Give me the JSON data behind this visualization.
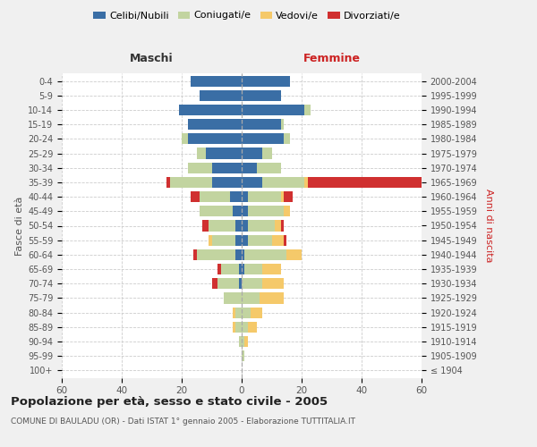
{
  "age_groups": [
    "100+",
    "95-99",
    "90-94",
    "85-89",
    "80-84",
    "75-79",
    "70-74",
    "65-69",
    "60-64",
    "55-59",
    "50-54",
    "45-49",
    "40-44",
    "35-39",
    "30-34",
    "25-29",
    "20-24",
    "15-19",
    "10-14",
    "5-9",
    "0-4"
  ],
  "birth_years": [
    "≤ 1904",
    "1905-1909",
    "1910-1914",
    "1915-1919",
    "1920-1924",
    "1925-1929",
    "1930-1934",
    "1935-1939",
    "1940-1944",
    "1945-1949",
    "1950-1954",
    "1955-1959",
    "1960-1964",
    "1965-1969",
    "1970-1974",
    "1975-1979",
    "1980-1984",
    "1985-1989",
    "1990-1994",
    "1995-1999",
    "2000-2004"
  ],
  "maschi": {
    "celibi": [
      0,
      0,
      0,
      0,
      0,
      0,
      1,
      1,
      2,
      2,
      2,
      3,
      4,
      10,
      10,
      12,
      18,
      18,
      21,
      14,
      17
    ],
    "coniugati": [
      0,
      0,
      1,
      2,
      2,
      6,
      7,
      6,
      13,
      8,
      9,
      11,
      10,
      14,
      8,
      3,
      2,
      0,
      0,
      0,
      0
    ],
    "vedovi": [
      0,
      0,
      0,
      1,
      1,
      0,
      0,
      0,
      0,
      1,
      0,
      0,
      0,
      0,
      0,
      0,
      0,
      0,
      0,
      0,
      0
    ],
    "divorziati": [
      0,
      0,
      0,
      0,
      0,
      0,
      2,
      1,
      1,
      0,
      2,
      0,
      3,
      1,
      0,
      0,
      0,
      0,
      0,
      0,
      0
    ]
  },
  "femmine": {
    "nubili": [
      0,
      0,
      0,
      0,
      0,
      0,
      0,
      1,
      1,
      2,
      2,
      2,
      2,
      7,
      5,
      7,
      14,
      13,
      21,
      13,
      16
    ],
    "coniugate": [
      0,
      1,
      1,
      2,
      3,
      6,
      7,
      6,
      14,
      8,
      9,
      12,
      11,
      14,
      8,
      3,
      2,
      1,
      2,
      0,
      0
    ],
    "vedove": [
      0,
      0,
      1,
      3,
      4,
      8,
      7,
      6,
      5,
      4,
      2,
      2,
      1,
      1,
      0,
      0,
      0,
      0,
      0,
      0,
      0
    ],
    "divorziate": [
      0,
      0,
      0,
      0,
      0,
      0,
      0,
      0,
      0,
      1,
      1,
      0,
      3,
      41,
      0,
      0,
      0,
      0,
      0,
      0,
      0
    ]
  },
  "colors": {
    "celibi_nubili": "#3A6EA5",
    "coniugati": "#C2D4A0",
    "vedovi": "#F5C96A",
    "divorziati": "#D03030"
  },
  "xlim": 60,
  "title": "Popolazione per età, sesso e stato civile - 2005",
  "subtitle": "COMUNE DI BAULADU (OR) - Dati ISTAT 1° gennaio 2005 - Elaborazione TUTTITALIA.IT",
  "ylabel_left": "Fasce di età",
  "ylabel_right": "Anni di nascita",
  "xlabel_maschi": "Maschi",
  "xlabel_femmine": "Femmine",
  "bg_color": "#f0f0f0",
  "plot_bg": "#ffffff"
}
